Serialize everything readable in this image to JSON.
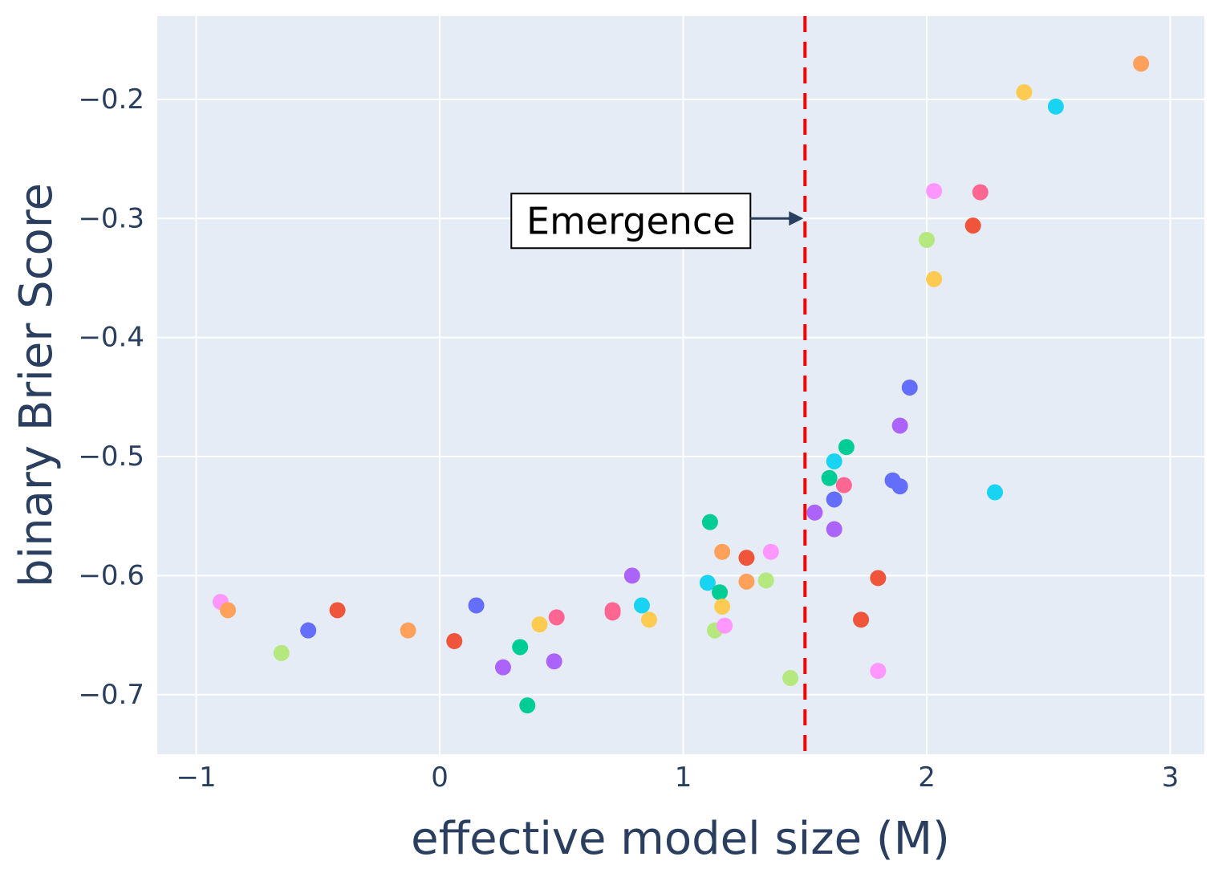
{
  "chart_data": {
    "type": "scatter",
    "xlabel": "effective model size (M)",
    "ylabel": "binary Brier Score",
    "xlim": [
      -1.16,
      3.14
    ],
    "ylim": [
      -0.75,
      -0.13
    ],
    "x_ticks": [
      {
        "value": -1,
        "label": "−1"
      },
      {
        "value": 0,
        "label": "0"
      },
      {
        "value": 1,
        "label": "1"
      },
      {
        "value": 2,
        "label": "2"
      },
      {
        "value": 3,
        "label": "3"
      }
    ],
    "y_ticks": [
      {
        "value": -0.2,
        "label": "−0.2"
      },
      {
        "value": -0.3,
        "label": "−0.3"
      },
      {
        "value": -0.4,
        "label": "−0.4"
      },
      {
        "value": -0.5,
        "label": "−0.5"
      },
      {
        "value": -0.6,
        "label": "−0.6"
      },
      {
        "value": -0.7,
        "label": "−0.7"
      }
    ],
    "grid": true,
    "legend": "none",
    "colors": {
      "plot_background": "#e5ecf6",
      "grid": "#ffffff",
      "tick_text": "#2a3f5f",
      "threshold_line": "#ff0000",
      "annotation_arrow": "#2a3f5f"
    },
    "threshold": {
      "x": 1.5,
      "style": "dashed"
    },
    "annotation": {
      "text": "Emergence",
      "x": 1.5,
      "y": -0.3
    },
    "points": [
      {
        "x": -0.9,
        "y": -0.622,
        "color": "#FF97FF"
      },
      {
        "x": -0.87,
        "y": -0.629,
        "color": "#FFA15A"
      },
      {
        "x": -0.65,
        "y": -0.665,
        "color": "#B6E880"
      },
      {
        "x": -0.54,
        "y": -0.646,
        "color": "#636EFA"
      },
      {
        "x": -0.42,
        "y": -0.629,
        "color": "#EF553B"
      },
      {
        "x": -0.13,
        "y": -0.646,
        "color": "#FFA15A"
      },
      {
        "x": 0.06,
        "y": -0.655,
        "color": "#EF553B"
      },
      {
        "x": 0.15,
        "y": -0.625,
        "color": "#636EFA"
      },
      {
        "x": 0.26,
        "y": -0.677,
        "color": "#AB63FA"
      },
      {
        "x": 0.33,
        "y": -0.66,
        "color": "#00CC96"
      },
      {
        "x": 0.36,
        "y": -0.709,
        "color": "#00CC96"
      },
      {
        "x": 0.41,
        "y": -0.641,
        "color": "#FECB52"
      },
      {
        "x": 0.47,
        "y": -0.672,
        "color": "#AB63FA"
      },
      {
        "x": 0.48,
        "y": -0.635,
        "color": "#FF6692"
      },
      {
        "x": 0.71,
        "y": -0.629,
        "color": "#FF6692"
      },
      {
        "x": 0.71,
        "y": -0.631,
        "color": "#FF6692"
      },
      {
        "x": 0.79,
        "y": -0.6,
        "color": "#AB63FA"
      },
      {
        "x": 0.83,
        "y": -0.625,
        "color": "#19D3F3"
      },
      {
        "x": 0.86,
        "y": -0.637,
        "color": "#FECB52"
      },
      {
        "x": 1.1,
        "y": -0.606,
        "color": "#19D3F3"
      },
      {
        "x": 1.11,
        "y": -0.555,
        "color": "#00CC96"
      },
      {
        "x": 1.13,
        "y": -0.646,
        "color": "#B6E880"
      },
      {
        "x": 1.15,
        "y": -0.614,
        "color": "#00CC96"
      },
      {
        "x": 1.16,
        "y": -0.626,
        "color": "#FECB52"
      },
      {
        "x": 1.16,
        "y": -0.58,
        "color": "#FFA15A"
      },
      {
        "x": 1.17,
        "y": -0.642,
        "color": "#FF97FF"
      },
      {
        "x": 1.26,
        "y": -0.585,
        "color": "#EF553B"
      },
      {
        "x": 1.26,
        "y": -0.605,
        "color": "#FFA15A"
      },
      {
        "x": 1.34,
        "y": -0.604,
        "color": "#B6E880"
      },
      {
        "x": 1.36,
        "y": -0.58,
        "color": "#FF97FF"
      },
      {
        "x": 1.44,
        "y": -0.686,
        "color": "#B6E880"
      },
      {
        "x": 1.54,
        "y": -0.547,
        "color": "#AB63FA"
      },
      {
        "x": 1.6,
        "y": -0.518,
        "color": "#00CC96"
      },
      {
        "x": 1.62,
        "y": -0.504,
        "color": "#19D3F3"
      },
      {
        "x": 1.62,
        "y": -0.536,
        "color": "#636EFA"
      },
      {
        "x": 1.62,
        "y": -0.561,
        "color": "#AB63FA"
      },
      {
        "x": 1.66,
        "y": -0.524,
        "color": "#FF6692"
      },
      {
        "x": 1.67,
        "y": -0.492,
        "color": "#00CC96"
      },
      {
        "x": 1.73,
        "y": -0.637,
        "color": "#EF553B"
      },
      {
        "x": 1.8,
        "y": -0.602,
        "color": "#EF553B"
      },
      {
        "x": 1.8,
        "y": -0.68,
        "color": "#FF97FF"
      },
      {
        "x": 1.86,
        "y": -0.52,
        "color": "#636EFA"
      },
      {
        "x": 1.89,
        "y": -0.525,
        "color": "#636EFA"
      },
      {
        "x": 1.89,
        "y": -0.474,
        "color": "#AB63FA"
      },
      {
        "x": 1.93,
        "y": -0.442,
        "color": "#636EFA"
      },
      {
        "x": 2.0,
        "y": -0.318,
        "color": "#B6E880"
      },
      {
        "x": 2.03,
        "y": -0.277,
        "color": "#FF97FF"
      },
      {
        "x": 2.03,
        "y": -0.351,
        "color": "#FECB52"
      },
      {
        "x": 2.19,
        "y": -0.306,
        "color": "#EF553B"
      },
      {
        "x": 2.22,
        "y": -0.278,
        "color": "#FF6692"
      },
      {
        "x": 2.28,
        "y": -0.53,
        "color": "#19D3F3"
      },
      {
        "x": 2.4,
        "y": -0.194,
        "color": "#FECB52"
      },
      {
        "x": 2.53,
        "y": -0.206,
        "color": "#19D3F3"
      },
      {
        "x": 2.88,
        "y": -0.17,
        "color": "#FFA15A"
      }
    ]
  }
}
